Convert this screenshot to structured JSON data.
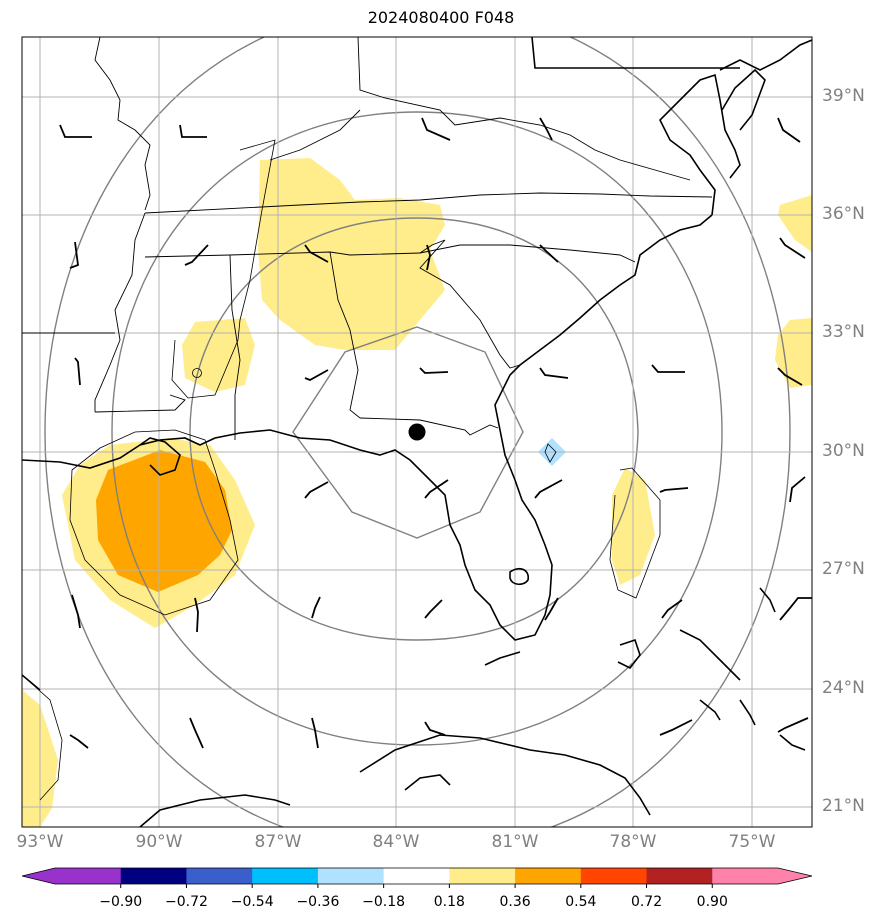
{
  "title": "2024080400 F048",
  "lat_labels": [
    "39°N",
    "36°N",
    "33°N",
    "30°N",
    "27°N",
    "24°N",
    "21°N"
  ],
  "lon_labels": [
    "93°W",
    "90°W",
    "87°W",
    "84°W",
    "81°W",
    "78°W",
    "75°W"
  ],
  "colorbar": {
    "ticks": [
      "−0.90",
      "−0.72",
      "−0.54",
      "−0.36",
      "−0.18",
      "0.18",
      "0.36",
      "0.54",
      "0.72",
      "0.90"
    ],
    "colors": [
      "#9932cc",
      "#000080",
      "#3a5fcd",
      "#00bfff",
      "#b0e2ff",
      "#ffffff",
      "#ffec8b",
      "#ffa500",
      "#ff4500",
      "#b22222",
      "#ff82ab"
    ]
  },
  "map": {
    "center_marker": {
      "lat": 30.5,
      "lon": -83.6,
      "symbol": "filled-circle"
    },
    "range_rings": "concentric",
    "feature_colors": {
      "positive_low": "#ffec8b",
      "positive_mid": "#ffa500",
      "negative_low": "#b0e2ff"
    }
  }
}
